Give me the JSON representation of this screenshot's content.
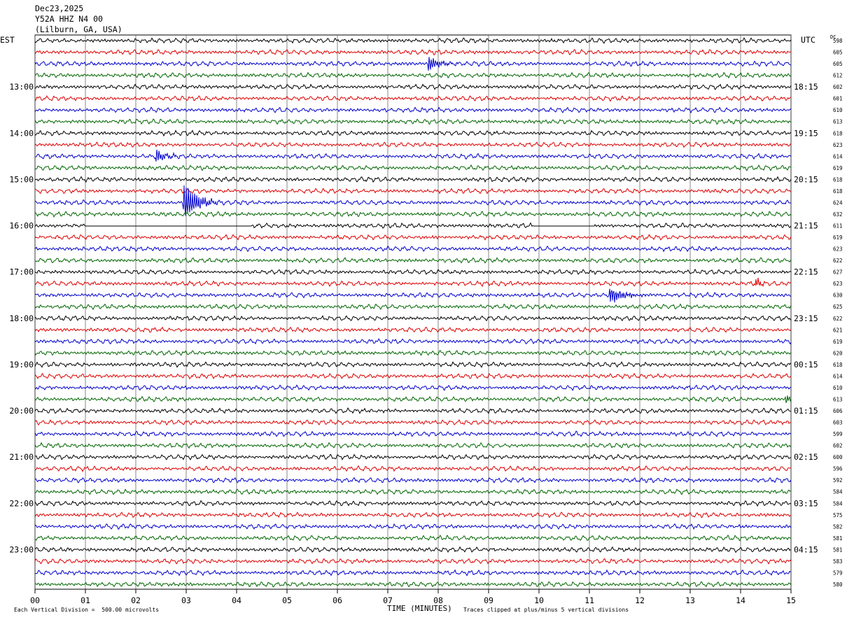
{
  "header": {
    "date": "Dec23,2025",
    "station": "Y52A HHZ N4 00",
    "location": "(Lilburn, GA, USA)"
  },
  "left_tz": "EST",
  "right_tz": "UTC",
  "dc_label": "DC",
  "footer": {
    "scale_note": "Each Vertical Division =  500.00 microvolts",
    "clip_note": "Traces clipped at plus/minus 5 vertical divisions"
  },
  "colors": {
    "trace_cycle": [
      "#000000",
      "#dd0000",
      "#0000cc",
      "#006600"
    ],
    "grid": "#000000",
    "background": "#ffffff"
  },
  "chart_data": {
    "type": "line",
    "subtype": "helicorder",
    "xlabel": "TIME (MINUTES)",
    "xlim": [
      0,
      15
    ],
    "x_ticks": [
      "00",
      "01",
      "02",
      "03",
      "04",
      "05",
      "06",
      "07",
      "08",
      "09",
      "10",
      "11",
      "12",
      "13",
      "14",
      "15"
    ],
    "minutes_per_row": 15,
    "row_count": 48,
    "left_hour_labels": [
      {
        "row": 4,
        "label": "13:00"
      },
      {
        "row": 8,
        "label": "14:00"
      },
      {
        "row": 12,
        "label": "15:00"
      },
      {
        "row": 16,
        "label": "16:00"
      },
      {
        "row": 20,
        "label": "17:00"
      },
      {
        "row": 24,
        "label": "18:00"
      },
      {
        "row": 28,
        "label": "19:00"
      },
      {
        "row": 32,
        "label": "20:00"
      },
      {
        "row": 36,
        "label": "21:00"
      },
      {
        "row": 40,
        "label": "22:00"
      },
      {
        "row": 44,
        "label": "23:00"
      }
    ],
    "right_hour_labels": [
      {
        "row": 4,
        "label": "18:15"
      },
      {
        "row": 8,
        "label": "19:15"
      },
      {
        "row": 12,
        "label": "20:15"
      },
      {
        "row": 16,
        "label": "21:15"
      },
      {
        "row": 20,
        "label": "22:15"
      },
      {
        "row": 24,
        "label": "23:15"
      },
      {
        "row": 28,
        "label": "00:15"
      },
      {
        "row": 32,
        "label": "01:15"
      },
      {
        "row": 36,
        "label": "02:15"
      },
      {
        "row": 40,
        "label": "03:15"
      },
      {
        "row": 44,
        "label": "04:15"
      }
    ],
    "dc_offsets": [
      598,
      605,
      605,
      612,
      602,
      601,
      610,
      613,
      618,
      623,
      614,
      619,
      618,
      618,
      624,
      632,
      611,
      619,
      623,
      622,
      627,
      623,
      630,
      625,
      622,
      621,
      619,
      620,
      618,
      614,
      610,
      613,
      606,
      603,
      599,
      602,
      600,
      596,
      592,
      584,
      584,
      575,
      582,
      581,
      581,
      583,
      579,
      580
    ],
    "events": [
      {
        "row": 2,
        "minute": 7.8,
        "amp": 0.9,
        "duration": 0.6
      },
      {
        "row": 10,
        "minute": 2.4,
        "amp": 0.8,
        "duration": 0.5
      },
      {
        "row": 14,
        "minute": 2.95,
        "amp": 2.4,
        "duration": 0.7
      },
      {
        "row": 22,
        "minute": 11.4,
        "amp": 1.0,
        "duration": 0.7
      },
      {
        "row": 21,
        "minute": 14.3,
        "amp": 0.6,
        "duration": 0.3
      },
      {
        "row": 31,
        "minute": 14.9,
        "amp": 0.6,
        "duration": 0.3
      }
    ],
    "gaps": [
      {
        "row": 16,
        "start": 1.0,
        "end": 2.6
      },
      {
        "row": 16,
        "start": 2.6,
        "end": 4.3
      },
      {
        "row": 16,
        "start": 9.9,
        "end": 11.1
      }
    ],
    "grid": true
  }
}
